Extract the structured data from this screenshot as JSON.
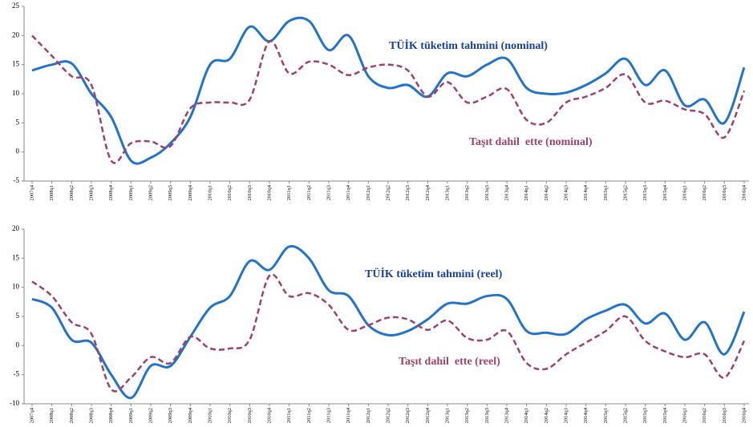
{
  "chart_data": [
    {
      "type": "line",
      "categories": [
        "2007q4",
        "2008q1",
        "2008q2",
        "2008q3",
        "2008q4",
        "2009q1",
        "2009q2",
        "2009q3",
        "2009q4",
        "2010q1",
        "2010q2",
        "2010q3",
        "2010q4",
        "2011q1",
        "2011q2",
        "2011q3",
        "2011q4",
        "2012q1",
        "2012q2",
        "2012q3",
        "2012q4",
        "2013q1",
        "2013q2",
        "2013q3",
        "2013q4",
        "2014q1",
        "2014q2",
        "2014q3",
        "2014q4",
        "2015q1",
        "2015q2",
        "2015q3",
        "2015q4",
        "2016q1",
        "2016q2",
        "2016q3",
        "2016q4"
      ],
      "series": [
        {
          "name": "TÜİK tüketim tahmini (nominal)",
          "color": "#2273cc",
          "dashed": false,
          "values": [
            14,
            15,
            15.2,
            10,
            6,
            -1.5,
            -1,
            1.5,
            6,
            15,
            16,
            21.5,
            19,
            22.5,
            22.5,
            17.5,
            20,
            13,
            11,
            11.5,
            9.5,
            13.5,
            13,
            15,
            16,
            11,
            10,
            10.2,
            11.5,
            13.5,
            16,
            11.5,
            14,
            8,
            9,
            5,
            14.5
          ]
        },
        {
          "name": "Taşıt dahil  ette (nominal)",
          "color": "#a0406c",
          "dashed": true,
          "values": [
            20,
            16.5,
            13,
            11.5,
            -1.5,
            1.5,
            1.8,
            1,
            7.5,
            8.5,
            8.5,
            9,
            19,
            13.5,
            15.5,
            15,
            13.2,
            14.5,
            15,
            14,
            9.5,
            12,
            8.5,
            9.5,
            10.8,
            5.5,
            5,
            8.5,
            9.5,
            11,
            13.3,
            8.5,
            8.8,
            7.3,
            6.5,
            2.5,
            10.5
          ]
        }
      ],
      "ylim": [
        -5,
        25
      ],
      "yticks": [
        -5,
        0,
        5,
        10,
        15,
        20,
        25
      ]
    },
    {
      "type": "line",
      "categories": [
        "2007q4",
        "2008q1",
        "2008q2",
        "2008q3",
        "2008q4",
        "2009q1",
        "2009q2",
        "2009q3",
        "2009q4",
        "2010q1",
        "2010q2",
        "2010q3",
        "2010q4",
        "2011q1",
        "2011q2",
        "2011q3",
        "2011q4",
        "2012q1",
        "2012q2",
        "2012q3",
        "2012q4",
        "2013q1",
        "2013q2",
        "2013q3",
        "2013q4",
        "2014q1",
        "2014q2",
        "2014q3",
        "2014q4",
        "2015q1",
        "2015q2",
        "2015q3",
        "2015q4",
        "2016q1",
        "2016q2",
        "2016q3",
        "2016q4"
      ],
      "series": [
        {
          "name": "TÜİK tüketim tahmini (reel)",
          "color": "#2273cc",
          "dashed": false,
          "values": [
            8,
            6.5,
            1,
            0.5,
            -5,
            -9,
            -3.5,
            -3.5,
            1.5,
            6.5,
            8.5,
            14.5,
            13,
            17,
            15,
            9.5,
            8.5,
            3.5,
            1.8,
            2.5,
            4.5,
            7.2,
            7.2,
            8.5,
            8,
            2.5,
            2.2,
            2,
            4.5,
            6,
            7,
            3.8,
            5.5,
            1,
            4,
            -1.5,
            5.8
          ]
        },
        {
          "name": "Taşıt dahil  ette (reel)",
          "color": "#a0406c",
          "dashed": true,
          "values": [
            11,
            8.5,
            4,
            2,
            -7.5,
            -5.5,
            -2,
            -3,
            1.5,
            -0.5,
            -0.5,
            1,
            12,
            8.5,
            9,
            7,
            2.7,
            3.5,
            4.8,
            4.5,
            2.7,
            4.3,
            1.3,
            1,
            2.5,
            -3,
            -4,
            -1.5,
            0.5,
            2.5,
            5,
            0.8,
            -1,
            -2,
            -1.5,
            -5.5,
            0.8
          ]
        }
      ],
      "ylim": [
        -10,
        20
      ],
      "yticks": [
        -10,
        -5,
        0,
        5,
        10,
        15,
        20
      ]
    }
  ]
}
